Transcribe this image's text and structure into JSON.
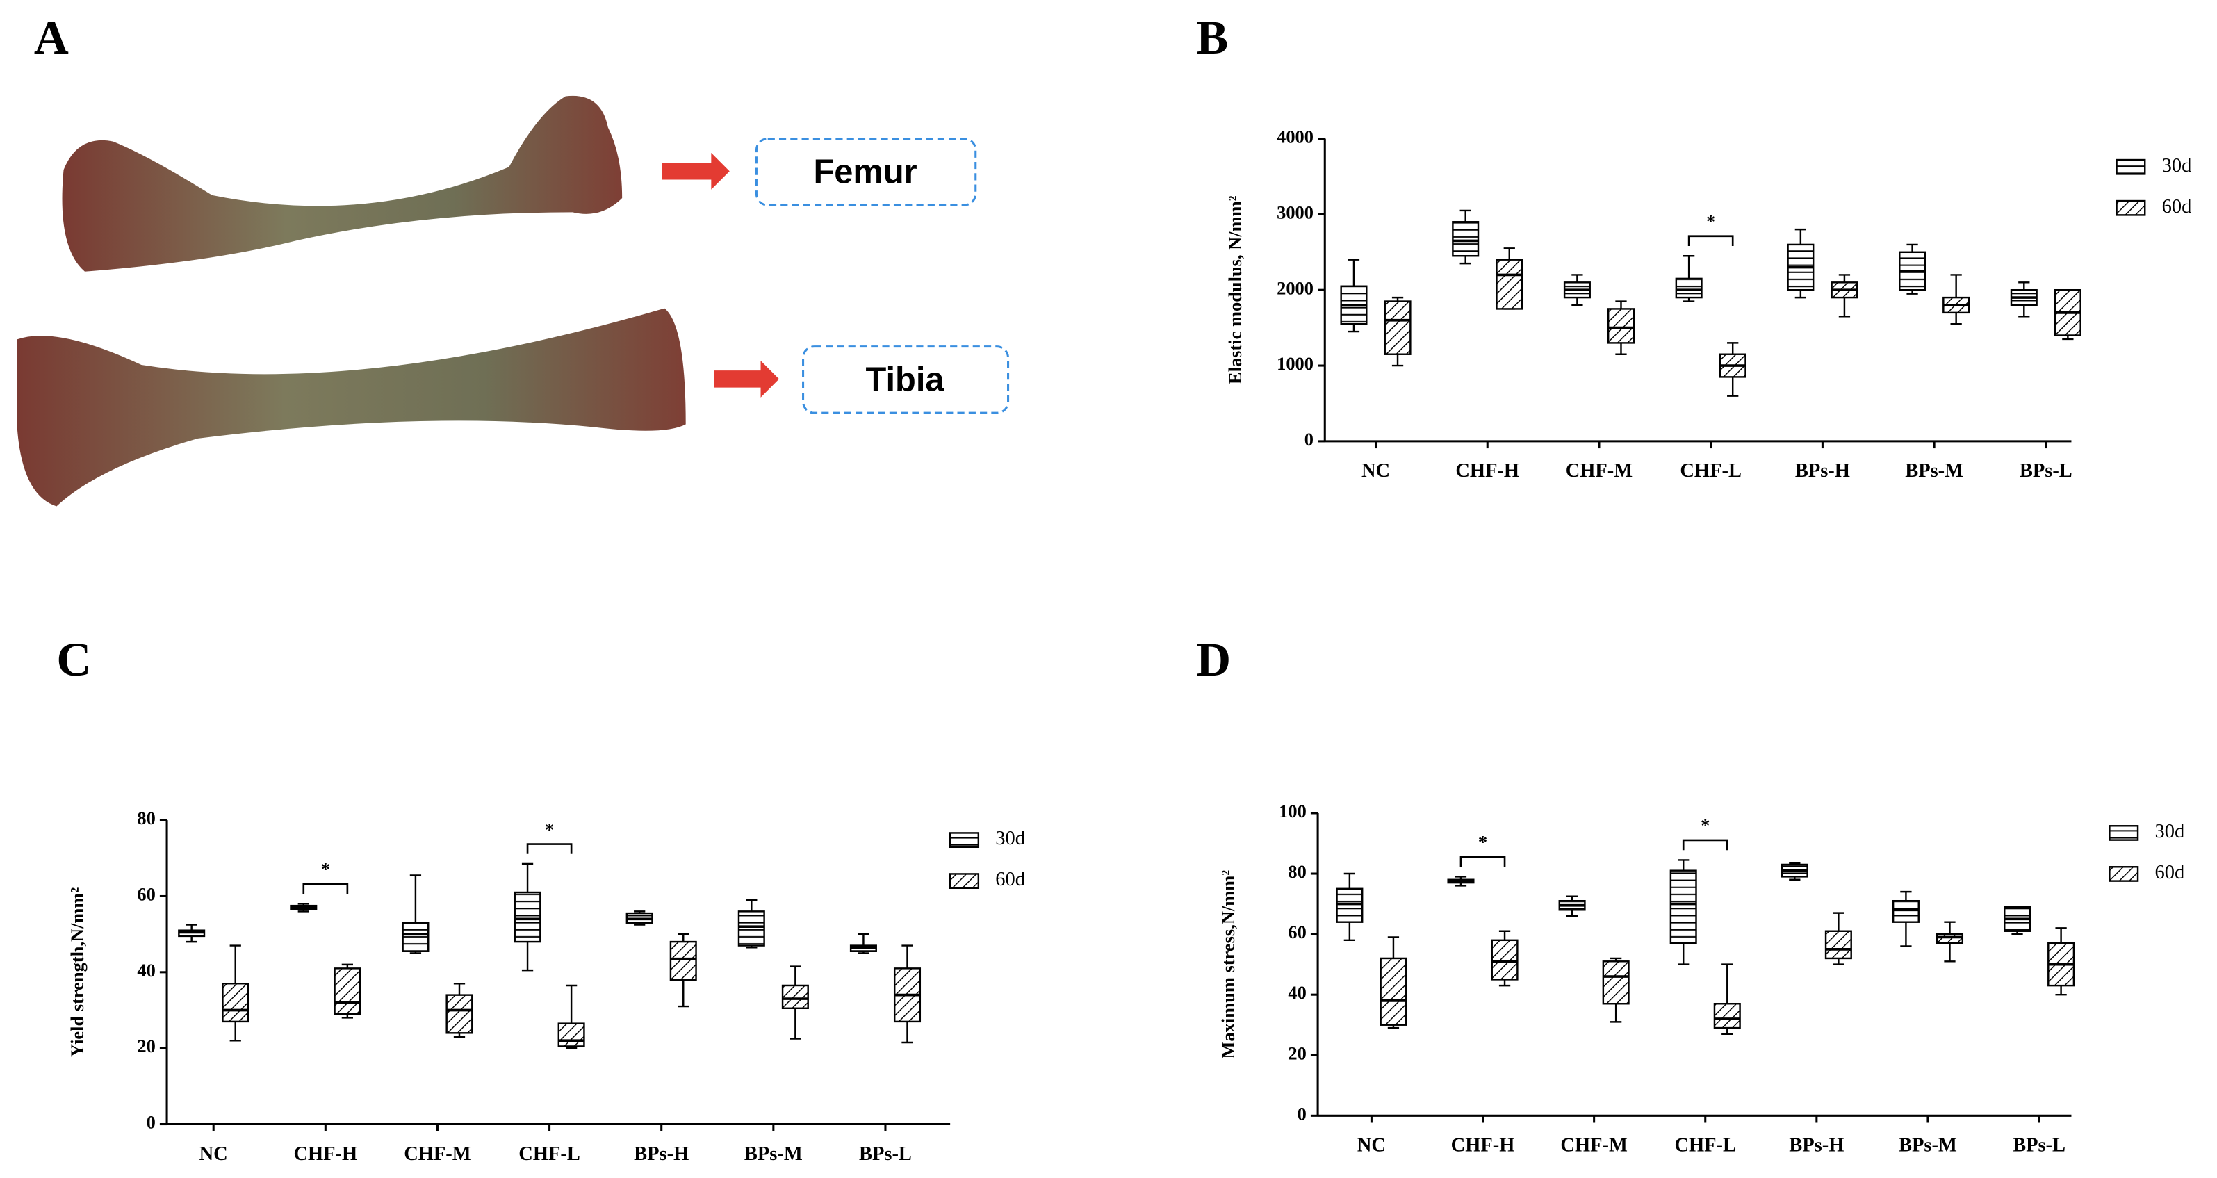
{
  "panel_a": {
    "label": "A",
    "femur": "Femur",
    "tibia": "Tibia"
  },
  "chart_data": [
    {
      "type": "box",
      "panel": "B",
      "y_label": "Elastic modulus, N/mm²",
      "categories": [
        "NC",
        "CHF-H",
        "CHF-M",
        "CHF-L",
        "BPs-H",
        "BPs-M",
        "BPs-L"
      ],
      "ylim": [
        0,
        4000
      ],
      "yticks": [
        0,
        1000,
        2000,
        3000,
        4000
      ],
      "series": [
        {
          "name": "30d",
          "color": "#000000",
          "pattern": "horizontal",
          "values": [
            {
              "min": 1450,
              "q1": 1550,
              "median": 1800,
              "q3": 2050,
              "max": 2400
            },
            {
              "min": 2350,
              "q1": 2450,
              "median": 2650,
              "q3": 2900,
              "max": 3050
            },
            {
              "min": 1800,
              "q1": 1900,
              "median": 2000,
              "q3": 2100,
              "max": 2200
            },
            {
              "min": 1850,
              "q1": 1900,
              "median": 2000,
              "q3": 2150,
              "max": 2450
            },
            {
              "min": 1900,
              "q1": 2000,
              "median": 2300,
              "q3": 2600,
              "max": 2800
            },
            {
              "min": 1950,
              "q1": 2000,
              "median": 2250,
              "q3": 2500,
              "max": 2600
            },
            {
              "min": 1650,
              "q1": 1800,
              "median": 1900,
              "q3": 2000,
              "max": 2100
            }
          ]
        },
        {
          "name": "60d",
          "color": "#000000",
          "pattern": "diagonal",
          "values": [
            {
              "min": 1000,
              "q1": 1150,
              "median": 1600,
              "q3": 1850,
              "max": 1900
            },
            {
              "min": 1750,
              "q1": 1750,
              "median": 2200,
              "q3": 2400,
              "max": 2550
            },
            {
              "min": 1150,
              "q1": 1300,
              "median": 1500,
              "q3": 1750,
              "max": 1850
            },
            {
              "min": 600,
              "q1": 850,
              "median": 1000,
              "q3": 1150,
              "max": 1300
            },
            {
              "min": 1650,
              "q1": 1900,
              "median": 2000,
              "q3": 2100,
              "max": 2200
            },
            {
              "min": 1550,
              "q1": 1700,
              "median": 1800,
              "q3": 1900,
              "max": 2200
            },
            {
              "min": 1350,
              "q1": 1400,
              "median": 1700,
              "q3": 2000,
              "max": 2000
            }
          ]
        }
      ],
      "significance": [
        {
          "category": "CHF-L",
          "label": "*"
        }
      ]
    },
    {
      "type": "box",
      "panel": "C",
      "y_label": "Yield strength,N/mm²",
      "categories": [
        "NC",
        "CHF-H",
        "CHF-M",
        "CHF-L",
        "BPs-H",
        "BPs-M",
        "BPs-L"
      ],
      "ylim": [
        0,
        80
      ],
      "yticks": [
        0,
        20,
        40,
        60,
        80
      ],
      "series": [
        {
          "name": "30d",
          "color": "#000000",
          "pattern": "horizontal",
          "values": [
            {
              "min": 48,
              "q1": 49.5,
              "median": 50.5,
              "q3": 51,
              "max": 52.5
            },
            {
              "min": 56,
              "q1": 56.5,
              "median": 57,
              "q3": 57.5,
              "max": 58
            },
            {
              "min": 45,
              "q1": 45.5,
              "median": 50,
              "q3": 53,
              "max": 65.5
            },
            {
              "min": 40.5,
              "q1": 48,
              "median": 54,
              "q3": 61,
              "max": 68.5
            },
            {
              "min": 52.5,
              "q1": 53,
              "median": 54,
              "q3": 55.5,
              "max": 56
            },
            {
              "min": 46.5,
              "q1": 47,
              "median": 52,
              "q3": 56,
              "max": 59
            },
            {
              "min": 45,
              "q1": 45.5,
              "median": 46.5,
              "q3": 47,
              "max": 50
            }
          ]
        },
        {
          "name": "60d",
          "color": "#000000",
          "pattern": "diagonal",
          "values": [
            {
              "min": 22,
              "q1": 27,
              "median": 30,
              "q3": 37,
              "max": 47
            },
            {
              "min": 28,
              "q1": 29,
              "median": 32,
              "q3": 41,
              "max": 42
            },
            {
              "min": 23,
              "q1": 24,
              "median": 30,
              "q3": 34,
              "max": 37
            },
            {
              "min": 20,
              "q1": 20.5,
              "median": 22,
              "q3": 26.5,
              "max": 36.5
            },
            {
              "min": 31,
              "q1": 38,
              "median": 43.5,
              "q3": 48,
              "max": 50
            },
            {
              "min": 22.5,
              "q1": 30.5,
              "median": 33,
              "q3": 36.5,
              "max": 41.5
            },
            {
              "min": 21.5,
              "q1": 27,
              "median": 34,
              "q3": 41,
              "max": 47
            }
          ]
        }
      ],
      "significance": [
        {
          "category": "CHF-H",
          "label": "*"
        },
        {
          "category": "CHF-L",
          "label": "*"
        }
      ]
    },
    {
      "type": "box",
      "panel": "D",
      "y_label": "Maximum  stress,N/mm²",
      "categories": [
        "NC",
        "CHF-H",
        "CHF-M",
        "CHF-L",
        "BPs-H",
        "BPs-M",
        "BPs-L"
      ],
      "ylim": [
        0,
        100
      ],
      "yticks": [
        0,
        20,
        40,
        60,
        80,
        100
      ],
      "series": [
        {
          "name": "30d",
          "color": "#000000",
          "pattern": "horizontal",
          "values": [
            {
              "min": 58,
              "q1": 64,
              "median": 70,
              "q3": 75,
              "max": 80
            },
            {
              "min": 76,
              "q1": 77,
              "median": 77.5,
              "q3": 78,
              "max": 79
            },
            {
              "min": 66,
              "q1": 68,
              "median": 69.5,
              "q3": 71,
              "max": 72.5
            },
            {
              "min": 50,
              "q1": 57,
              "median": 70,
              "q3": 81,
              "max": 84.5
            },
            {
              "min": 78,
              "q1": 79,
              "median": 81,
              "q3": 83,
              "max": 83.5
            },
            {
              "min": 56,
              "q1": 64,
              "median": 68,
              "q3": 71,
              "max": 74
            },
            {
              "min": 60,
              "q1": 61,
              "median": 65,
              "q3": 69,
              "max": 69
            }
          ]
        },
        {
          "name": "60d",
          "color": "#000000",
          "pattern": "diagonal",
          "values": [
            {
              "min": 29,
              "q1": 30,
              "median": 38,
              "q3": 52,
              "max": 59
            },
            {
              "min": 43,
              "q1": 45,
              "median": 51,
              "q3": 58,
              "max": 61
            },
            {
              "min": 31,
              "q1": 37,
              "median": 46,
              "q3": 51,
              "max": 52
            },
            {
              "min": 27,
              "q1": 29,
              "median": 32,
              "q3": 37,
              "max": 50
            },
            {
              "min": 50,
              "q1": 52,
              "median": 55,
              "q3": 61,
              "max": 67
            },
            {
              "min": 51,
              "q1": 57,
              "median": 59,
              "q3": 60,
              "max": 64
            },
            {
              "min": 40,
              "q1": 43,
              "median": 50,
              "q3": 57,
              "max": 62
            }
          ]
        }
      ],
      "significance": [
        {
          "category": "CHF-H",
          "label": "*"
        },
        {
          "category": "CHF-L",
          "label": "*"
        }
      ]
    }
  ]
}
